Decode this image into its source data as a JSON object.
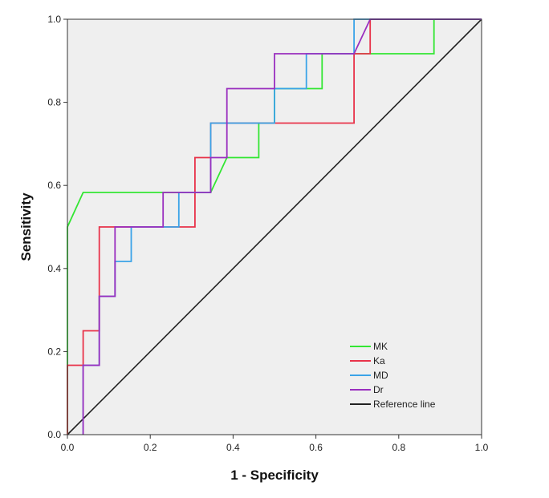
{
  "chart_data": {
    "type": "line",
    "title": "",
    "xlabel": "1 - Specificity",
    "ylabel": "Sensitivity",
    "xlim": [
      0,
      1
    ],
    "ylim": [
      0,
      1
    ],
    "xticks": [
      "0.0",
      "0.2",
      "0.4",
      "0.6",
      "0.8",
      "1.0"
    ],
    "yticks": [
      "0.0",
      "0.2",
      "0.4",
      "0.6",
      "0.8",
      "1.0"
    ],
    "grid": false,
    "legend_position": "bottom-right",
    "series": [
      {
        "name": "MK",
        "color": "#33e633",
        "x": [
          0,
          0,
          0.038,
          0.346,
          0.385,
          0.462,
          0.462,
          0.5,
          0.5,
          0.615,
          0.615,
          0.692,
          0.692,
          0.885,
          0.885,
          1.0
        ],
        "y": [
          0,
          0.5,
          0.583,
          0.583,
          0.667,
          0.667,
          0.75,
          0.75,
          0.833,
          0.833,
          0.917,
          0.917,
          0.917,
          0.917,
          1.0,
          1.0
        ]
      },
      {
        "name": "Ka",
        "color": "#e8334a",
        "x": [
          0,
          0,
          0.038,
          0.038,
          0.077,
          0.077,
          0.308,
          0.308,
          0.346,
          0.346,
          0.5,
          0.5,
          0.692,
          0.692,
          0.731,
          0.731,
          1.0
        ],
        "y": [
          0,
          0.167,
          0.167,
          0.25,
          0.25,
          0.5,
          0.5,
          0.667,
          0.667,
          0.75,
          0.75,
          0.75,
          0.75,
          0.917,
          0.917,
          1.0,
          1.0
        ]
      },
      {
        "name": "MD",
        "color": "#3aa3e8",
        "x": [
          0.038,
          0.038,
          0.077,
          0.077,
          0.115,
          0.115,
          0.154,
          0.154,
          0.269,
          0.269,
          0.346,
          0.346,
          0.5,
          0.5,
          0.577,
          0.577,
          0.692,
          0.692,
          1.0
        ],
        "y": [
          0,
          0.167,
          0.167,
          0.333,
          0.333,
          0.417,
          0.417,
          0.5,
          0.5,
          0.583,
          0.583,
          0.75,
          0.75,
          0.833,
          0.833,
          0.917,
          0.917,
          1.0,
          1.0
        ]
      },
      {
        "name": "Dr",
        "color": "#9a2fbf",
        "x": [
          0.038,
          0.038,
          0.077,
          0.077,
          0.115,
          0.115,
          0.231,
          0.231,
          0.346,
          0.346,
          0.385,
          0.385,
          0.5,
          0.5,
          0.692,
          0.692,
          0.731,
          1.0
        ],
        "y": [
          0,
          0.167,
          0.167,
          0.333,
          0.333,
          0.5,
          0.5,
          0.583,
          0.583,
          0.667,
          0.667,
          0.833,
          0.833,
          0.917,
          0.917,
          0.917,
          1.0,
          1.0
        ]
      },
      {
        "name": "Reference line",
        "color": "#222222",
        "x": [
          0,
          1
        ],
        "y": [
          0,
          1
        ]
      }
    ]
  }
}
